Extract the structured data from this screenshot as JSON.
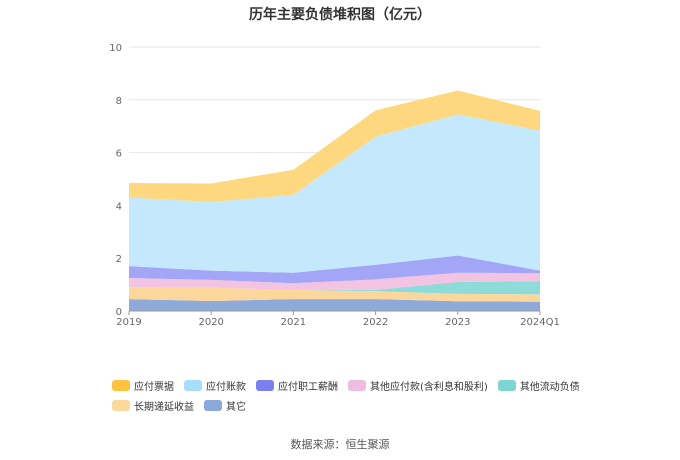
{
  "chart_data": {
    "type": "area",
    "stacked": true,
    "title": "历年主要负债堆积图（亿元）",
    "categories": [
      "2019",
      "2020",
      "2021",
      "2022",
      "2023",
      "2024Q1"
    ],
    "ylim": [
      0,
      10
    ],
    "yticks": [
      "0",
      "2",
      "4",
      "6",
      "8",
      "10"
    ],
    "grid": true,
    "legend_position": "bottom",
    "series": [
      {
        "name": "其它",
        "color": "#8fa9d9",
        "values": [
          0.45,
          0.38,
          0.45,
          0.45,
          0.37,
          0.35
        ]
      },
      {
        "name": "长期递延收益",
        "color": "#fcd79b",
        "values": [
          0.45,
          0.5,
          0.35,
          0.3,
          0.28,
          0.28
        ]
      },
      {
        "name": "其他流动负债",
        "color": "#8ddcda",
        "values": [
          0.0,
          0.0,
          0.0,
          0.05,
          0.45,
          0.5
        ]
      },
      {
        "name": "其他应付款(含利息和股利)",
        "color": "#f3c4e2",
        "values": [
          0.35,
          0.3,
          0.25,
          0.4,
          0.35,
          0.3
        ]
      },
      {
        "name": "应付职工薪酬",
        "color": "#a3a5f6",
        "values": [
          0.45,
          0.35,
          0.4,
          0.55,
          0.65,
          0.1
        ]
      },
      {
        "name": "应付账款",
        "color": "#c5e9fc",
        "values": [
          2.6,
          2.6,
          2.95,
          4.85,
          5.35,
          5.3
        ]
      },
      {
        "name": "应付票据",
        "color": "#fed87f",
        "values": [
          0.55,
          0.7,
          0.95,
          1.0,
          0.9,
          0.75
        ]
      }
    ]
  },
  "legend": [
    {
      "label": "应付票据",
      "color": "#fcc33d"
    },
    {
      "label": "应付账款",
      "color": "#a6ddfa"
    },
    {
      "label": "应付职工薪酬",
      "color": "#7b7ff0"
    },
    {
      "label": "其他应付款(含利息和股利)",
      "color": "#efbde0"
    },
    {
      "label": "其他流动负债",
      "color": "#7dd6d3"
    },
    {
      "label": "长期递延收益",
      "color": "#fdd89b"
    },
    {
      "label": "其它",
      "color": "#8aa8d9"
    }
  ],
  "source": "数据来源：恒生聚源"
}
